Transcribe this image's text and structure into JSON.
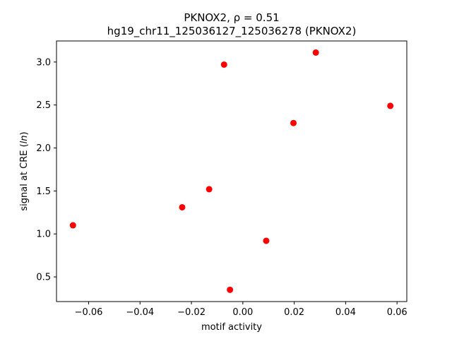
{
  "chart_data": {
    "type": "scatter",
    "title_line1": "PKNOX2, ρ = 0.51",
    "title_line2": "hg19_chr11_125036127_125036278 (PKNOX2)",
    "xlabel": "motif activity",
    "ylabel_prefix": "signal at CRE (",
    "ylabel_italic": "ln",
    "ylabel_suffix": ")",
    "xlim": [
      -0.0725,
      0.0638
    ],
    "ylim": [
      0.213,
      3.245
    ],
    "xticks": [
      -0.06,
      -0.04,
      -0.02,
      0.0,
      0.02,
      0.04,
      0.06
    ],
    "xtick_labels": [
      "−0.06",
      "−0.04",
      "−0.02",
      "0.00",
      "0.02",
      "0.04",
      "0.06"
    ],
    "yticks": [
      0.5,
      1.0,
      1.5,
      2.0,
      2.5,
      3.0
    ],
    "ytick_labels": [
      "0.5",
      "1.0",
      "1.5",
      "2.0",
      "2.5",
      "3.0"
    ],
    "grid": false,
    "marker_color": "#ff0000",
    "series": [
      {
        "points": [
          {
            "x": -0.0661,
            "y": 1.1
          },
          {
            "x": -0.0236,
            "y": 1.31
          },
          {
            "x": -0.0131,
            "y": 1.52
          },
          {
            "x": -0.0073,
            "y": 2.97
          },
          {
            "x": -0.005,
            "y": 0.35
          },
          {
            "x": 0.0091,
            "y": 0.92
          },
          {
            "x": 0.0197,
            "y": 2.29
          },
          {
            "x": 0.0284,
            "y": 3.11
          },
          {
            "x": 0.0574,
            "y": 2.49
          }
        ]
      }
    ]
  }
}
